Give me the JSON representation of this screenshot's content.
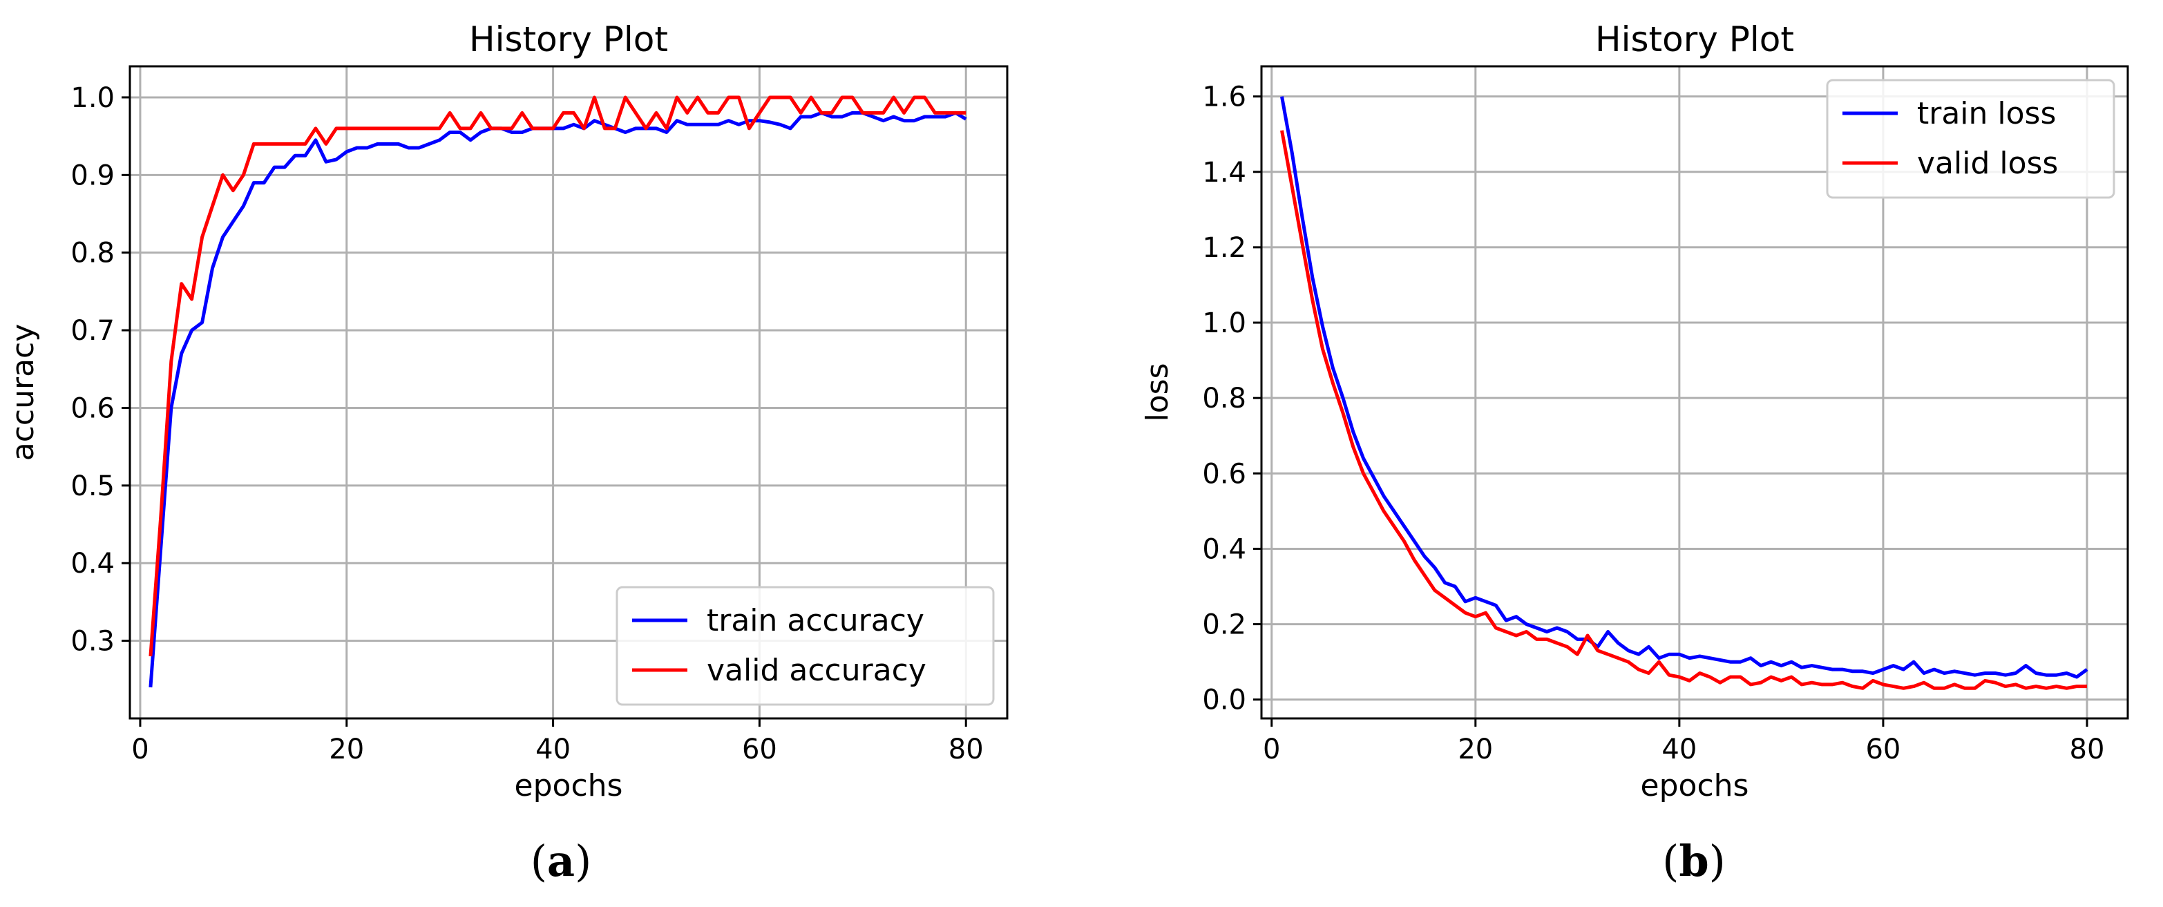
{
  "chart_data": [
    {
      "type": "line",
      "title": "History Plot",
      "xlabel": "epochs",
      "ylabel": "accuracy",
      "caption": "(a)",
      "caption_letter": "a",
      "xlim": [
        -1,
        84
      ],
      "ylim": [
        0.2,
        1.04
      ],
      "xticks": [
        0,
        20,
        40,
        60,
        80
      ],
      "yticks": [
        0.3,
        0.4,
        0.5,
        0.6,
        0.7,
        0.8,
        0.9,
        1.0
      ],
      "grid": true,
      "legend_position": "lower-right",
      "series": [
        {
          "name": "train accuracy",
          "color": "#0000ff",
          "x": [
            1,
            2,
            3,
            4,
            5,
            6,
            7,
            8,
            9,
            10,
            11,
            12,
            13,
            14,
            15,
            16,
            17,
            18,
            19,
            20,
            21,
            22,
            23,
            24,
            25,
            26,
            27,
            28,
            29,
            30,
            31,
            32,
            33,
            34,
            35,
            36,
            37,
            38,
            39,
            40,
            41,
            42,
            43,
            44,
            45,
            46,
            47,
            48,
            49,
            50,
            51,
            52,
            53,
            54,
            55,
            56,
            57,
            58,
            59,
            60,
            61,
            62,
            63,
            64,
            65,
            66,
            67,
            68,
            69,
            70,
            71,
            72,
            73,
            74,
            75,
            76,
            77,
            78,
            79,
            80
          ],
          "y": [
            0.24,
            0.42,
            0.6,
            0.67,
            0.7,
            0.71,
            0.78,
            0.82,
            0.84,
            0.86,
            0.89,
            0.89,
            0.91,
            0.91,
            0.925,
            0.925,
            0.945,
            0.917,
            0.92,
            0.93,
            0.935,
            0.935,
            0.94,
            0.94,
            0.94,
            0.935,
            0.935,
            0.94,
            0.945,
            0.955,
            0.955,
            0.945,
            0.955,
            0.96,
            0.96,
            0.955,
            0.955,
            0.96,
            0.96,
            0.96,
            0.96,
            0.965,
            0.96,
            0.97,
            0.965,
            0.96,
            0.955,
            0.96,
            0.96,
            0.96,
            0.955,
            0.97,
            0.965,
            0.965,
            0.965,
            0.965,
            0.97,
            0.965,
            0.97,
            0.97,
            0.968,
            0.965,
            0.96,
            0.975,
            0.975,
            0.98,
            0.975,
            0.975,
            0.98,
            0.98,
            0.975,
            0.97,
            0.975,
            0.97,
            0.97,
            0.975,
            0.975,
            0.975,
            0.98,
            0.972
          ]
        },
        {
          "name": "valid accuracy",
          "color": "#ff0000",
          "x": [
            1,
            2,
            3,
            4,
            5,
            6,
            7,
            8,
            9,
            10,
            11,
            12,
            13,
            14,
            15,
            16,
            17,
            18,
            19,
            20,
            21,
            22,
            23,
            24,
            25,
            26,
            27,
            28,
            29,
            30,
            31,
            32,
            33,
            34,
            35,
            36,
            37,
            38,
            39,
            40,
            41,
            42,
            43,
            44,
            45,
            46,
            47,
            48,
            49,
            50,
            51,
            52,
            53,
            54,
            55,
            56,
            57,
            58,
            59,
            60,
            61,
            62,
            63,
            64,
            65,
            66,
            67,
            68,
            69,
            70,
            71,
            72,
            73,
            74,
            75,
            76,
            77,
            78,
            79,
            80
          ],
          "y": [
            0.28,
            0.46,
            0.66,
            0.76,
            0.74,
            0.82,
            0.86,
            0.9,
            0.88,
            0.9,
            0.94,
            0.94,
            0.94,
            0.94,
            0.94,
            0.94,
            0.96,
            0.94,
            0.96,
            0.96,
            0.96,
            0.96,
            0.96,
            0.96,
            0.96,
            0.96,
            0.96,
            0.96,
            0.96,
            0.98,
            0.96,
            0.96,
            0.98,
            0.96,
            0.96,
            0.96,
            0.98,
            0.96,
            0.96,
            0.96,
            0.98,
            0.98,
            0.96,
            1.0,
            0.96,
            0.96,
            1.0,
            0.98,
            0.96,
            0.98,
            0.96,
            1.0,
            0.98,
            1.0,
            0.98,
            0.98,
            1.0,
            1.0,
            0.96,
            0.98,
            1.0,
            1.0,
            1.0,
            0.98,
            1.0,
            0.98,
            0.98,
            1.0,
            1.0,
            0.98,
            0.98,
            0.98,
            1.0,
            0.98,
            1.0,
            1.0,
            0.98,
            0.98,
            0.98,
            0.98
          ]
        }
      ]
    },
    {
      "type": "line",
      "title": "History Plot",
      "xlabel": "epochs",
      "ylabel": "loss",
      "caption": "(b)",
      "caption_letter": "b",
      "xlim": [
        -1,
        84
      ],
      "ylim": [
        -0.05,
        1.68
      ],
      "xticks": [
        0,
        20,
        40,
        60,
        80
      ],
      "yticks": [
        0.0,
        0.2,
        0.4,
        0.6,
        0.8,
        1.0,
        1.2,
        1.4,
        1.6
      ],
      "grid": true,
      "legend_position": "upper-right",
      "series": [
        {
          "name": "train loss",
          "color": "#0000ff",
          "x": [
            1,
            2,
            3,
            4,
            5,
            6,
            7,
            8,
            9,
            10,
            11,
            12,
            13,
            14,
            15,
            16,
            17,
            18,
            19,
            20,
            21,
            22,
            23,
            24,
            25,
            26,
            27,
            28,
            29,
            30,
            31,
            32,
            33,
            34,
            35,
            36,
            37,
            38,
            39,
            40,
            41,
            42,
            43,
            44,
            45,
            46,
            47,
            48,
            49,
            50,
            51,
            52,
            53,
            54,
            55,
            56,
            57,
            58,
            59,
            60,
            61,
            62,
            63,
            64,
            65,
            66,
            67,
            68,
            69,
            70,
            71,
            72,
            73,
            74,
            75,
            76,
            77,
            78,
            79,
            80
          ],
          "y": [
            1.6,
            1.45,
            1.28,
            1.12,
            0.99,
            0.88,
            0.8,
            0.71,
            0.64,
            0.59,
            0.54,
            0.5,
            0.46,
            0.42,
            0.38,
            0.35,
            0.31,
            0.3,
            0.26,
            0.27,
            0.26,
            0.25,
            0.21,
            0.22,
            0.2,
            0.19,
            0.18,
            0.19,
            0.18,
            0.16,
            0.16,
            0.14,
            0.18,
            0.15,
            0.13,
            0.12,
            0.14,
            0.11,
            0.12,
            0.12,
            0.11,
            0.115,
            0.11,
            0.105,
            0.1,
            0.1,
            0.11,
            0.09,
            0.1,
            0.09,
            0.1,
            0.085,
            0.09,
            0.085,
            0.08,
            0.08,
            0.075,
            0.075,
            0.07,
            0.08,
            0.09,
            0.08,
            0.1,
            0.07,
            0.08,
            0.07,
            0.075,
            0.07,
            0.065,
            0.07,
            0.07,
            0.065,
            0.07,
            0.09,
            0.07,
            0.065,
            0.065,
            0.07,
            0.06,
            0.08
          ]
        },
        {
          "name": "valid loss",
          "color": "#ff0000",
          "x": [
            1,
            2,
            3,
            4,
            5,
            6,
            7,
            8,
            9,
            10,
            11,
            12,
            13,
            14,
            15,
            16,
            17,
            18,
            19,
            20,
            21,
            22,
            23,
            24,
            25,
            26,
            27,
            28,
            29,
            30,
            31,
            32,
            33,
            34,
            35,
            36,
            37,
            38,
            39,
            40,
            41,
            42,
            43,
            44,
            45,
            46,
            47,
            48,
            49,
            50,
            51,
            52,
            53,
            54,
            55,
            56,
            57,
            58,
            59,
            60,
            61,
            62,
            63,
            64,
            65,
            66,
            67,
            68,
            69,
            70,
            71,
            72,
            73,
            74,
            75,
            76,
            77,
            78,
            79,
            80
          ],
          "y": [
            1.51,
            1.36,
            1.21,
            1.06,
            0.93,
            0.84,
            0.76,
            0.67,
            0.6,
            0.55,
            0.5,
            0.46,
            0.42,
            0.37,
            0.33,
            0.29,
            0.27,
            0.25,
            0.23,
            0.22,
            0.23,
            0.19,
            0.18,
            0.17,
            0.18,
            0.16,
            0.16,
            0.15,
            0.14,
            0.12,
            0.17,
            0.13,
            0.12,
            0.11,
            0.1,
            0.08,
            0.07,
            0.1,
            0.065,
            0.06,
            0.05,
            0.07,
            0.06,
            0.045,
            0.06,
            0.06,
            0.04,
            0.045,
            0.06,
            0.05,
            0.06,
            0.04,
            0.045,
            0.04,
            0.04,
            0.045,
            0.035,
            0.03,
            0.05,
            0.04,
            0.035,
            0.03,
            0.035,
            0.045,
            0.03,
            0.03,
            0.04,
            0.03,
            0.03,
            0.05,
            0.045,
            0.035,
            0.04,
            0.03,
            0.035,
            0.03,
            0.035,
            0.03,
            0.035,
            0.035
          ]
        }
      ]
    }
  ]
}
